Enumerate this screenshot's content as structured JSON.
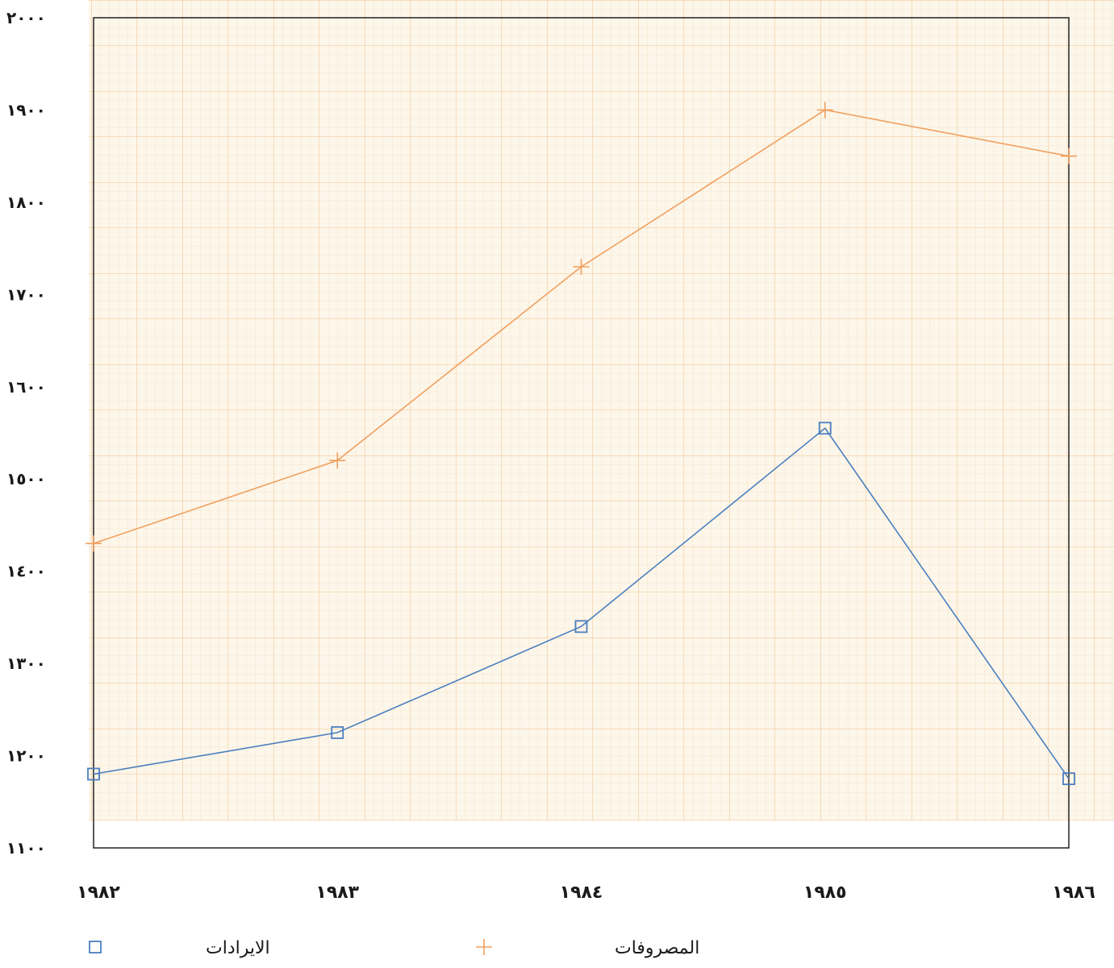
{
  "chart_data": {
    "type": "line",
    "categories": [
      "١٩٨٢",
      "١٩٨٣",
      "١٩٨٤",
      "١٩٨٥",
      "١٩٨٦"
    ],
    "y_tick_labels": [
      "١١٠٠",
      "١٢٠٠",
      "١٣٠٠",
      "١٤٠٠",
      "١٥٠٠",
      "١٦٠٠",
      "١٧٠٠",
      "١٨٠٠",
      "١٩٠٠",
      "٢٠٠٠"
    ],
    "y_ticks": [
      1100,
      1200,
      1300,
      1400,
      1500,
      1600,
      1700,
      1800,
      1900,
      2000
    ],
    "ylim": [
      1100,
      2000
    ],
    "grid": true,
    "legend_position": "bottom",
    "series": [
      {
        "name": "المصروفات",
        "marker": "plus",
        "color": "#f0a060",
        "values": [
          1430,
          1520,
          1730,
          1900,
          1850
        ]
      },
      {
        "name": "الايرادات",
        "marker": "square",
        "color": "#4a7fbf",
        "values": [
          1180,
          1225,
          1340,
          1555,
          1175
        ]
      }
    ]
  }
}
